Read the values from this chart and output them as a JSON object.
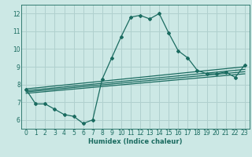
{
  "xlabel": "Humidex (Indice chaleur)",
  "ylabel": "",
  "background_color": "#cce8e5",
  "grid_color": "#b0d0ce",
  "line_color": "#1a6b60",
  "xlim": [
    -0.5,
    23.5
  ],
  "ylim": [
    5.5,
    12.5
  ],
  "xticks": [
    0,
    1,
    2,
    3,
    4,
    5,
    6,
    7,
    8,
    9,
    10,
    11,
    12,
    13,
    14,
    15,
    16,
    17,
    18,
    19,
    20,
    21,
    22,
    23
  ],
  "yticks": [
    6,
    7,
    8,
    9,
    10,
    11,
    12
  ],
  "main_x": [
    0,
    1,
    2,
    3,
    4,
    5,
    6,
    7,
    8,
    9,
    10,
    11,
    12,
    13,
    14,
    15,
    16,
    17,
    18,
    19,
    20,
    21,
    22,
    23
  ],
  "main_y": [
    7.7,
    6.9,
    6.9,
    6.6,
    6.3,
    6.2,
    5.8,
    6.0,
    8.3,
    9.5,
    10.7,
    11.8,
    11.9,
    11.7,
    12.0,
    10.9,
    9.9,
    9.5,
    8.8,
    8.6,
    8.6,
    8.7,
    8.4,
    9.1
  ],
  "lines": [
    {
      "x0": 0,
      "y0": 7.75,
      "x1": 23,
      "y1": 9.0
    },
    {
      "x0": 0,
      "y0": 7.65,
      "x1": 23,
      "y1": 8.85
    },
    {
      "x0": 0,
      "y0": 7.58,
      "x1": 23,
      "y1": 8.72
    },
    {
      "x0": 0,
      "y0": 7.5,
      "x1": 23,
      "y1": 8.6
    }
  ]
}
